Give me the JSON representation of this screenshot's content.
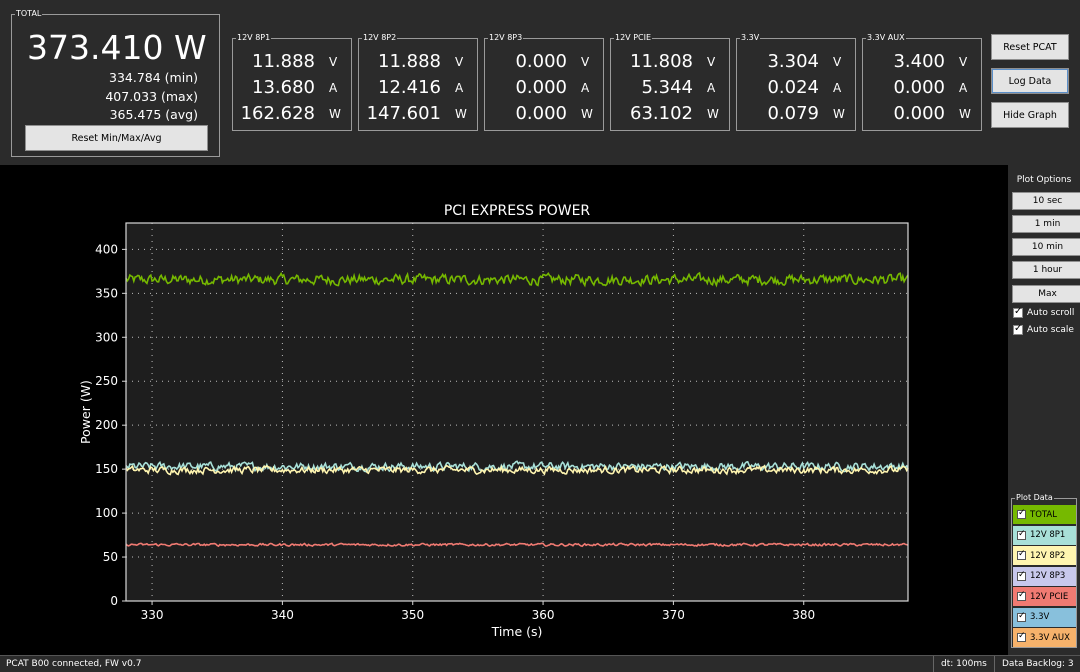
{
  "total": {
    "title": "TOTAL",
    "value": "373.410 W",
    "min": "334.784 (min)",
    "max": "407.033 (max)",
    "avg": "365.475 (avg)",
    "reset_label": "Reset Min/Max/Avg"
  },
  "channels": [
    {
      "title": "12V 8P1",
      "volts": "11.888",
      "amps": "13.680",
      "watts": "162.628"
    },
    {
      "title": "12V 8P2",
      "volts": "11.888",
      "amps": "12.416",
      "watts": "147.601"
    },
    {
      "title": "12V 8P3",
      "volts": "0.000",
      "amps": "0.000",
      "watts": "0.000"
    },
    {
      "title": "12V PCIE",
      "volts": "11.808",
      "amps": "5.344",
      "watts": "63.102"
    },
    {
      "title": "3.3V",
      "volts": "3.304",
      "amps": "0.024",
      "watts": "0.079"
    },
    {
      "title": "3.3V AUX",
      "volts": "3.400",
      "amps": "0.000",
      "watts": "0.000"
    }
  ],
  "units": {
    "v": "V",
    "a": "A",
    "w": "W"
  },
  "buttons": {
    "reset_pcat": "Reset PCAT",
    "log_data": "Log Data",
    "hide_graph": "Hide Graph"
  },
  "plot_options": {
    "title": "Plot Options",
    "buttons": [
      "10 sec",
      "1 min",
      "10 min",
      "1 hour",
      "Max"
    ],
    "auto_scroll": "Auto scroll",
    "auto_scale": "Auto scale"
  },
  "plot_data": {
    "title": "Plot Data",
    "items": [
      {
        "label": "TOTAL",
        "color": "#76b900"
      },
      {
        "label": "12V 8P1",
        "color": "#a8e0d8"
      },
      {
        "label": "12V 8P2",
        "color": "#fff5b0"
      },
      {
        "label": "12V 8P3",
        "color": "#c8c8ec"
      },
      {
        "label": "12V PCIE",
        "color": "#f07a72"
      },
      {
        "label": "3.3V",
        "color": "#88c0dc"
      },
      {
        "label": "3.3V AUX",
        "color": "#f6b26b"
      }
    ]
  },
  "status": {
    "connection": "PCAT B00 connected, FW v0.7",
    "dt": "dt: 100ms",
    "backlog": "Data Backlog: 3"
  },
  "chart_data": {
    "type": "line",
    "title": "PCI EXPRESS POWER",
    "xlabel": "Time (s)",
    "ylabel": "Power (W)",
    "xlim": [
      328,
      388
    ],
    "ylim": [
      0,
      430
    ],
    "xticks": [
      330,
      340,
      350,
      360,
      370,
      380
    ],
    "yticks": [
      0,
      50,
      100,
      150,
      200,
      250,
      300,
      350,
      400
    ],
    "grid": true,
    "series": [
      {
        "name": "TOTAL",
        "color": "#76b900",
        "mean": 365.5,
        "min": 345,
        "max": 392,
        "noise": 9
      },
      {
        "name": "12V 8P1",
        "color": "#a8e0d8",
        "mean": 153,
        "min": 130,
        "max": 172,
        "noise": 7
      },
      {
        "name": "12V 8P2",
        "color": "#fff5b0",
        "mean": 149,
        "min": 136,
        "max": 165,
        "noise": 6
      },
      {
        "name": "12V PCIE",
        "color": "#f07a72",
        "mean": 64,
        "min": 58,
        "max": 71,
        "noise": 2.2
      }
    ]
  }
}
